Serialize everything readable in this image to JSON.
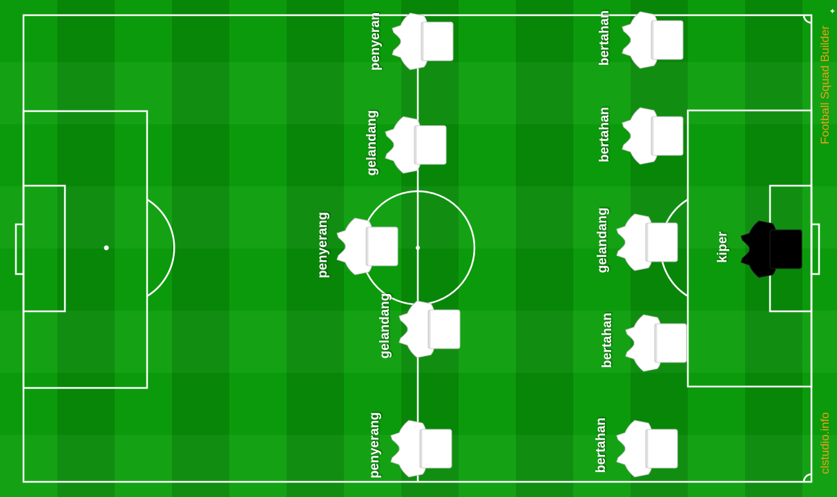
{
  "app": {
    "title": "Football Squad Builder",
    "website": "clstudio.info"
  },
  "colors": {
    "pitch_light": "#0b9f0b",
    "pitch_dark": "#088a08",
    "lines": "#ffffff",
    "outfield_kit": "#ffffff",
    "goalkeeper_kit": "#000000",
    "brand_text": "#e8a21a"
  },
  "players": [
    {
      "id": "p1",
      "label": "penyeran",
      "kit": "outfield"
    },
    {
      "id": "p2",
      "label": "gelandang",
      "kit": "outfield"
    },
    {
      "id": "p3",
      "label": "penyerang",
      "kit": "outfield"
    },
    {
      "id": "p4",
      "label": "gelandang",
      "kit": "outfield"
    },
    {
      "id": "p5",
      "label": "penyerang",
      "kit": "outfield"
    },
    {
      "id": "p6",
      "label": "bertahan",
      "kit": "outfield"
    },
    {
      "id": "p7",
      "label": "bertahan",
      "kit": "outfield"
    },
    {
      "id": "p8",
      "label": "gelandang",
      "kit": "outfield"
    },
    {
      "id": "p9",
      "label": "bertahan",
      "kit": "outfield"
    },
    {
      "id": "p10",
      "label": "bertahan",
      "kit": "outfield"
    },
    {
      "id": "p11",
      "label": "kiper",
      "kit": "goalkeeper"
    }
  ]
}
